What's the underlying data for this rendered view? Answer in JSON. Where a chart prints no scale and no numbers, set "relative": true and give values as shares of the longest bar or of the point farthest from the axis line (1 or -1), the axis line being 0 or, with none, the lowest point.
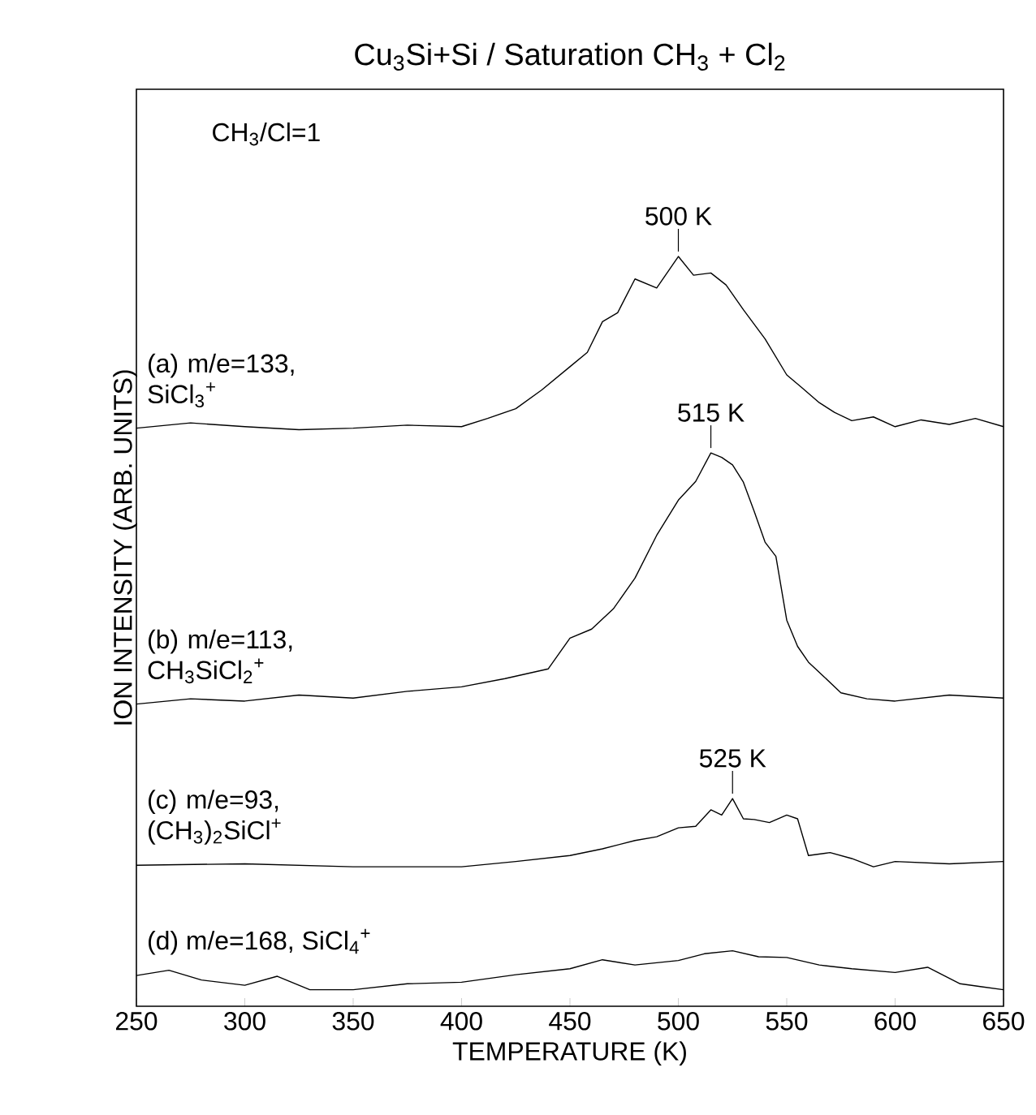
{
  "chart_data": {
    "type": "line",
    "title": "Cu$_{3}$Si+Si / Saturation CH$_{3}$ + Cl$_{2}$",
    "xlabel": "TEMPERATURE (K)",
    "ylabel": "ION INTENSITY (ARB. UNITS)",
    "relative": true,
    "legend": false,
    "xlim": [
      250,
      650
    ],
    "xticks": [
      250,
      300,
      350,
      400,
      450,
      500,
      550,
      600,
      650
    ],
    "annotations": [
      "CH$_{3}$/Cl=1",
      {
        "text": "500 K",
        "x": 500,
        "y": 1.0
      },
      {
        "text": "515 K",
        "x": 515,
        "y": 0.738
      },
      {
        "text": "525 K",
        "x": 525,
        "y": 0.277
      }
    ],
    "series": [
      {
        "name": "(a) m/e=133, SiCl$_{3}$$^{+}$",
        "color": "#000000",
        "x": [
          250,
          275,
          300,
          325,
          350,
          375,
          400,
          412,
          425,
          437,
          450,
          458,
          465,
          472,
          480,
          490,
          500,
          507,
          515,
          522,
          530,
          540,
          550,
          557,
          565,
          572,
          580,
          590,
          600,
          612,
          625,
          637,
          650
        ],
        "values": [
          0.771,
          0.778,
          0.773,
          0.769,
          0.771,
          0.775,
          0.773,
          0.784,
          0.797,
          0.822,
          0.853,
          0.872,
          0.913,
          0.925,
          0.97,
          0.958,
          1.0,
          0.975,
          0.978,
          0.962,
          0.929,
          0.89,
          0.842,
          0.825,
          0.805,
          0.792,
          0.781,
          0.786,
          0.773,
          0.782,
          0.776,
          0.784,
          0.773
        ]
      },
      {
        "name": "(b) m/e=113, CH$_{3}$SiCl$_{2}$$^{+}$",
        "color": "#000000",
        "x": [
          250,
          275,
          300,
          325,
          350,
          375,
          400,
          420,
          440,
          450,
          460,
          470,
          480,
          490,
          500,
          508,
          515,
          520,
          525,
          530,
          535,
          540,
          545,
          550,
          555,
          560,
          567,
          575,
          587,
          600,
          625,
          650
        ],
        "values": [
          0.403,
          0.41,
          0.407,
          0.415,
          0.411,
          0.42,
          0.426,
          0.437,
          0.45,
          0.491,
          0.503,
          0.53,
          0.571,
          0.628,
          0.675,
          0.7,
          0.738,
          0.732,
          0.722,
          0.699,
          0.66,
          0.619,
          0.6,
          0.515,
          0.48,
          0.459,
          0.44,
          0.418,
          0.41,
          0.407,
          0.415,
          0.411
        ]
      },
      {
        "name": "(c) m/e=93, (CH$_{3}$)$_{2}$SiCl$^{+}$",
        "color": "#000000",
        "x": [
          250,
          300,
          350,
          400,
          425,
          450,
          465,
          480,
          490,
          500,
          508,
          515,
          520,
          525,
          530,
          535,
          542,
          550,
          555,
          560,
          570,
          580,
          590,
          600,
          625,
          650
        ],
        "values": [
          0.188,
          0.19,
          0.186,
          0.186,
          0.193,
          0.201,
          0.21,
          0.221,
          0.226,
          0.238,
          0.24,
          0.262,
          0.255,
          0.277,
          0.25,
          0.249,
          0.245,
          0.255,
          0.25,
          0.201,
          0.205,
          0.197,
          0.186,
          0.193,
          0.19,
          0.193
        ]
      },
      {
        "name": "(d) m/e=168, SiCl$_{4}$$^{+}$",
        "color": "#000000",
        "x": [
          250,
          265,
          280,
          300,
          315,
          330,
          350,
          375,
          400,
          425,
          450,
          465,
          480,
          500,
          512,
          525,
          537,
          550,
          565,
          580,
          600,
          615,
          630,
          640,
          650
        ],
        "values": [
          0.041,
          0.048,
          0.035,
          0.028,
          0.04,
          0.022,
          0.022,
          0.03,
          0.032,
          0.042,
          0.05,
          0.062,
          0.055,
          0.061,
          0.07,
          0.074,
          0.066,
          0.065,
          0.055,
          0.05,
          0.045,
          0.052,
          0.03,
          0.026,
          0.022
        ]
      }
    ]
  }
}
